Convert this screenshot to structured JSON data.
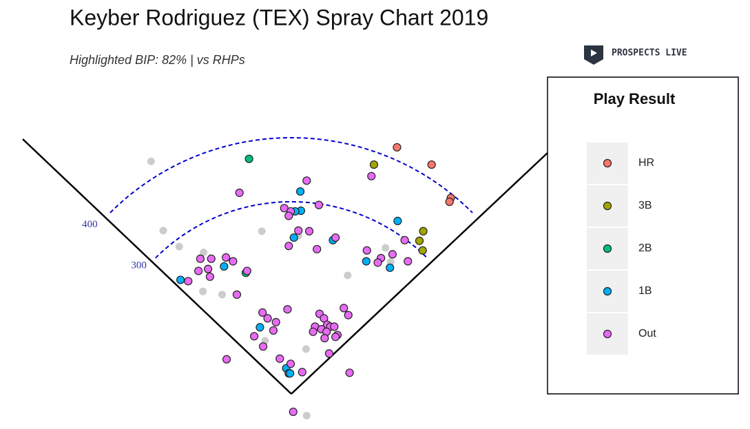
{
  "chart_data": {
    "type": "scatter",
    "title": "Keyber Rodriguez (TEX) Spray Chart 2019",
    "subtitle": "Highlighted BIP: 82% | vs RHPs",
    "brand": "PROSPECTS LIVE",
    "legend_title": "Play Result",
    "distance_arcs": [
      300,
      400
    ],
    "other_points": {
      "color": "#cccccc",
      "x": [
        -219,
        -200,
        -175,
        -137,
        -46,
        11,
        147,
        155,
        88,
        -138,
        -108,
        -41,
        23,
        24
      ],
      "y": [
        363,
        255,
        230,
        221,
        254,
        247,
        228,
        206,
        185,
        160,
        155,
        83,
        70,
        -34
      ]
    },
    "series": [
      {
        "name": "HR",
        "color": "#f8766d",
        "x": [
          165,
          219,
          249,
          247
        ],
        "y": [
          385,
          358,
          306,
          300
        ]
      },
      {
        "name": "3B",
        "color": "#a3a500",
        "x": [
          129,
          206,
          200,
          205
        ],
        "y": [
          358,
          254,
          239,
          224
        ]
      },
      {
        "name": "2B",
        "color": "#00bf7d",
        "x": [
          -66,
          -71
        ],
        "y": [
          367,
          189
        ]
      },
      {
        "name": "1B",
        "color": "#00b0f6",
        "x": [
          14,
          15,
          6,
          166,
          4,
          65,
          117,
          154,
          -105,
          -173,
          -49,
          -8,
          -4,
          -2
        ],
        "y": [
          316,
          286,
          285,
          270,
          244,
          240,
          207,
          197,
          199,
          178,
          104,
          40,
          32,
          32
        ]
      },
      {
        "name": "Out",
        "color": "#e76bf3",
        "x": [
          24,
          -81,
          43,
          -11,
          -1,
          -4,
          11,
          28,
          69,
          -4,
          40,
          125,
          118,
          177,
          158,
          140,
          135,
          182,
          -142,
          -125,
          -102,
          -91,
          -130,
          -145,
          -69,
          -127,
          -161,
          -85,
          -45,
          -6,
          82,
          -37,
          -24,
          44,
          51,
          89,
          -28,
          37,
          56,
          61,
          67,
          47,
          55,
          34,
          72,
          52,
          69,
          -58,
          -44,
          59,
          -18,
          -1,
          -101,
          17,
          91,
          3
        ],
        "y": [
          333,
          314,
          295,
          290,
          285,
          278,
          255,
          254,
          244,
          231,
          226,
          340,
          224,
          240,
          218,
          212,
          205,
          207,
          211,
          211,
          213,
          207,
          195,
          192,
          192,
          183,
          176,
          155,
          127,
          132,
          134,
          118,
          112,
          125,
          118,
          123,
          99,
          105,
          108,
          105,
          105,
          101,
          97,
          97,
          92,
          87,
          89,
          90,
          74,
          63,
          55,
          47,
          54,
          34,
          33,
          -28
        ]
      }
    ]
  }
}
